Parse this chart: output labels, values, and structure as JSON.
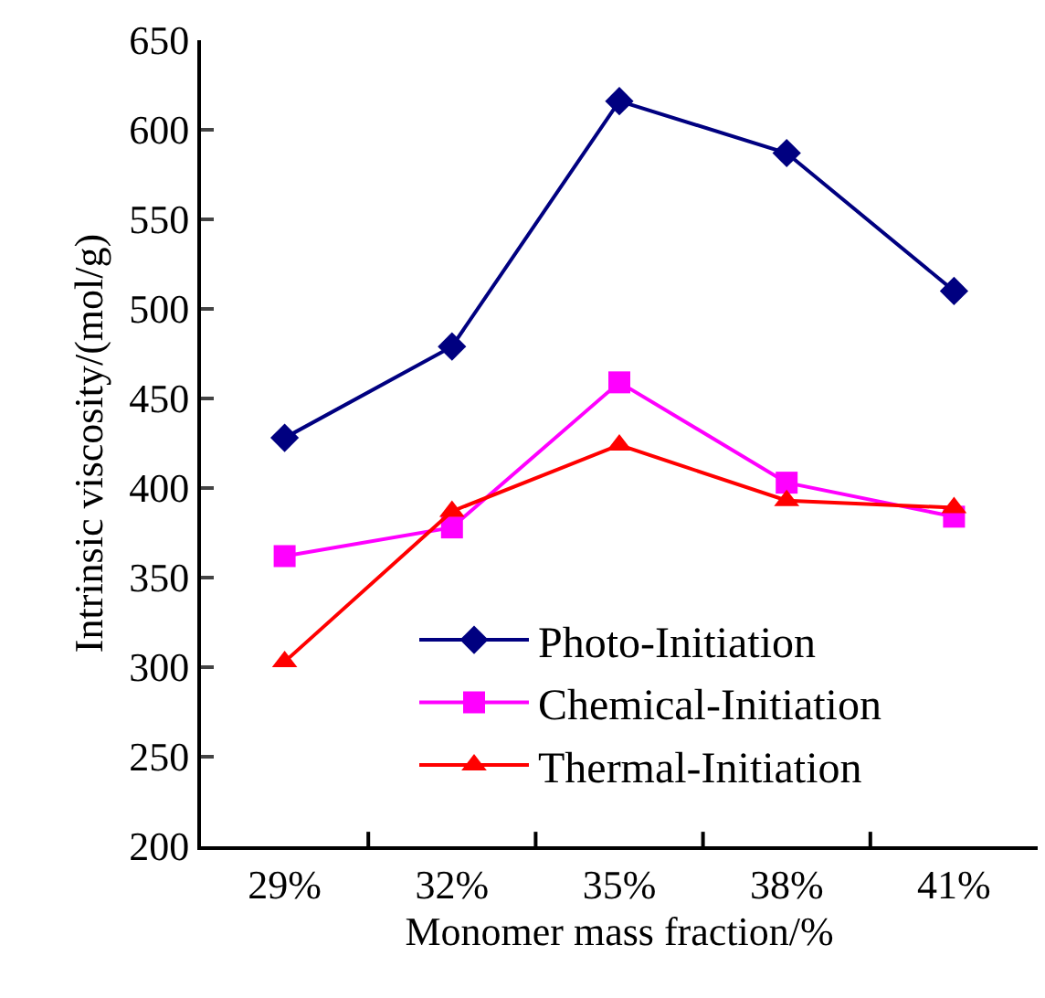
{
  "chart_data": {
    "type": "line",
    "xlabel": "Monomer mass fraction/%",
    "ylabel": "Intrinsic viscosity/(mol/g)",
    "categories": [
      "29%",
      "32%",
      "35%",
      "38%",
      "41%"
    ],
    "series": [
      {
        "name": "Photo-Initiation",
        "color": "#000080",
        "marker": "diamond",
        "values": [
          428,
          479,
          616,
          587,
          510
        ]
      },
      {
        "name": "Chemical-Initiation",
        "color": "#ff00ff",
        "marker": "square",
        "values": [
          362,
          378,
          459,
          403,
          384
        ]
      },
      {
        "name": "Thermal-Initiation",
        "color": "#ff0000",
        "marker": "triangle",
        "values": [
          303,
          387,
          424,
          393,
          389
        ]
      }
    ],
    "ylim": [
      200,
      650
    ],
    "yticks": [
      200,
      250,
      300,
      350,
      400,
      450,
      500,
      550,
      600,
      650
    ],
    "grid": false,
    "legend": "bottom",
    "line_style": "solid"
  }
}
